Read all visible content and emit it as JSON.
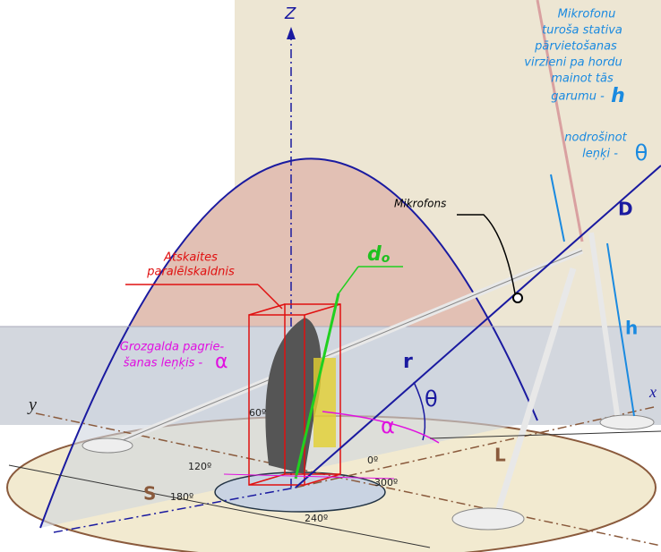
{
  "axes": {
    "z": "Z",
    "x": "x",
    "y": "y"
  },
  "note": {
    "lines": [
      "Mikrofonu",
      "turoša stativa",
      "pārvietošanas",
      "virzieni pa hordu",
      "mainot tās",
      "garumu -",
      "nodrošinot",
      "leņķi -"
    ],
    "h": "h",
    "theta": "θ"
  },
  "labels": {
    "D": "D",
    "microphone": "Mikrofons",
    "h": "h",
    "r": "r",
    "theta": "θ",
    "alpha": "α",
    "L": "L",
    "S": "S",
    "d": "d",
    "d_sub": "o"
  },
  "reference": [
    "Atskaites",
    "paralēlskaldnis"
  ],
  "turntable": {
    "lines": [
      "Grozgalda pagrie-",
      "šanas leņķis -"
    ],
    "alpha": "α"
  },
  "angles": [
    "60º",
    "120º",
    "180º",
    "240º",
    "300º",
    "0º"
  ]
}
